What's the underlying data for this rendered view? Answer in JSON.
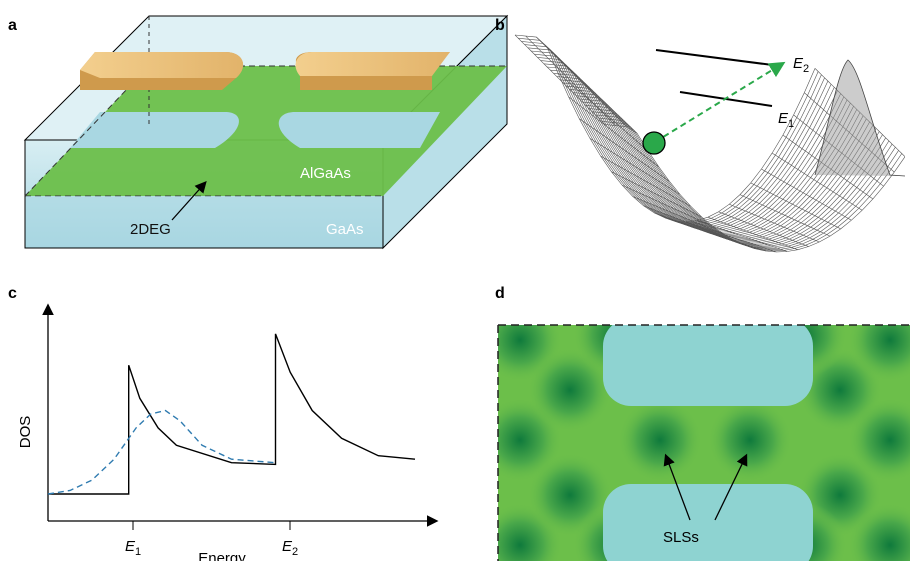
{
  "panels": {
    "a": {
      "letter": "a",
      "layer_top_label": "AlGaAs",
      "layer_bottom_label": "GaAs",
      "gas_label": "2DEG"
    },
    "b": {
      "letter": "b",
      "level_upper": "E",
      "level_upper_sub": "2",
      "level_lower": "E",
      "level_lower_sub": "1"
    },
    "c": {
      "letter": "c",
      "ylabel": "DOS",
      "xlabel": "Energy",
      "tick1": "E",
      "tick1_sub": "1",
      "tick2": "E",
      "tick2_sub": "2"
    },
    "d": {
      "letter": "d",
      "states_label": "SLSs"
    }
  },
  "colors": {
    "water": "#a9d7e2",
    "gas_green": "#6cbf4a",
    "gold": "#dcae64",
    "ball": "#2aa84a",
    "dashed_curve": "#2f7bb0",
    "pocket_dark": "#0f7a3c",
    "channel_cyan": "#8ed3d1"
  },
  "chart_data": {
    "type": "line",
    "xlabel": "Energy",
    "ylabel": "DOS",
    "x_ticks": [
      "E1",
      "E2"
    ],
    "series": [
      {
        "style": "solid",
        "x": [
          0.0,
          0.22,
          0.22,
          0.25,
          0.3,
          0.35,
          0.5,
          0.62,
          0.62,
          0.66,
          0.72,
          0.8,
          0.9,
          1.0
        ],
        "y": [
          0.0,
          0.0,
          0.74,
          0.55,
          0.38,
          0.28,
          0.18,
          0.17,
          0.92,
          0.7,
          0.48,
          0.32,
          0.22,
          0.2
        ]
      },
      {
        "style": "dashed",
        "x": [
          0.0,
          0.06,
          0.12,
          0.18,
          0.24,
          0.28,
          0.32,
          0.36,
          0.42,
          0.5,
          0.62
        ],
        "y": [
          0.0,
          0.02,
          0.08,
          0.2,
          0.38,
          0.46,
          0.48,
          0.42,
          0.28,
          0.2,
          0.18
        ]
      }
    ]
  }
}
